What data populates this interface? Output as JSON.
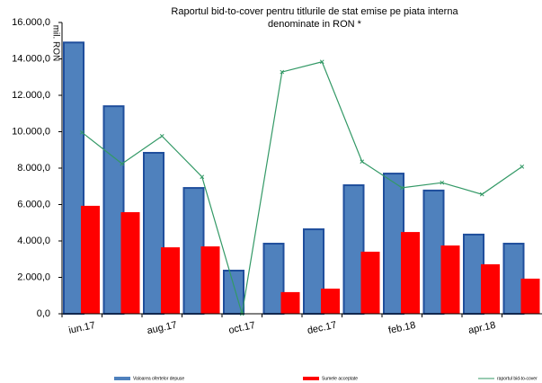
{
  "chart_data": {
    "type": "bar",
    "title": "Raportul bid-to-cover pentru titlurile de stat emise pe piata interna",
    "subtitle": "denominate in RON *",
    "y_label": "mil. RON",
    "categories": [
      "iun.17",
      null,
      "aug.17",
      null,
      "oct.17",
      null,
      "dec.17",
      null,
      "feb.18",
      null,
      "apr.18",
      null
    ],
    "series": [
      {
        "name": "Valoarea ofertelor depuse",
        "color": "#4f81bd",
        "values": [
          14900,
          11400,
          8840,
          6910,
          2370,
          3850,
          4640,
          7060,
          7700,
          6770,
          4350,
          3850
        ]
      },
      {
        "name": "Sumele acceptate",
        "color": "#ff0000",
        "values": [
          5930,
          5580,
          3650,
          3700,
          0,
          1190,
          1380,
          3410,
          4490,
          3750,
          2720,
          1930
        ]
      },
      {
        "name": "raportul bid-to-cover",
        "color": "#339966",
        "type": "line",
        "axis": "y2",
        "values": [
          2.49,
          2.06,
          2.44,
          1.88,
          0,
          3.32,
          3.46,
          2.09,
          1.73,
          1.8,
          1.64,
          2.02
        ]
      }
    ],
    "ylim": [
      0,
      16000
    ],
    "yticks": [
      {
        "value": 0,
        "label": "0,0"
      },
      {
        "value": 2000,
        "label": "2.000,0"
      },
      {
        "value": 4000,
        "label": "4.000,0"
      },
      {
        "value": 6000,
        "label": "6.000,0"
      },
      {
        "value": 8000,
        "label": "8.000,0"
      },
      {
        "value": 10000,
        "label": "10.000,0"
      },
      {
        "value": 12000,
        "label": "12.000,0"
      },
      {
        "value": 14000,
        "label": "14.000,0"
      },
      {
        "value": 16000,
        "label": "16.000,0"
      }
    ],
    "y2lim": [
      0,
      4
    ],
    "legend": "bottom"
  }
}
